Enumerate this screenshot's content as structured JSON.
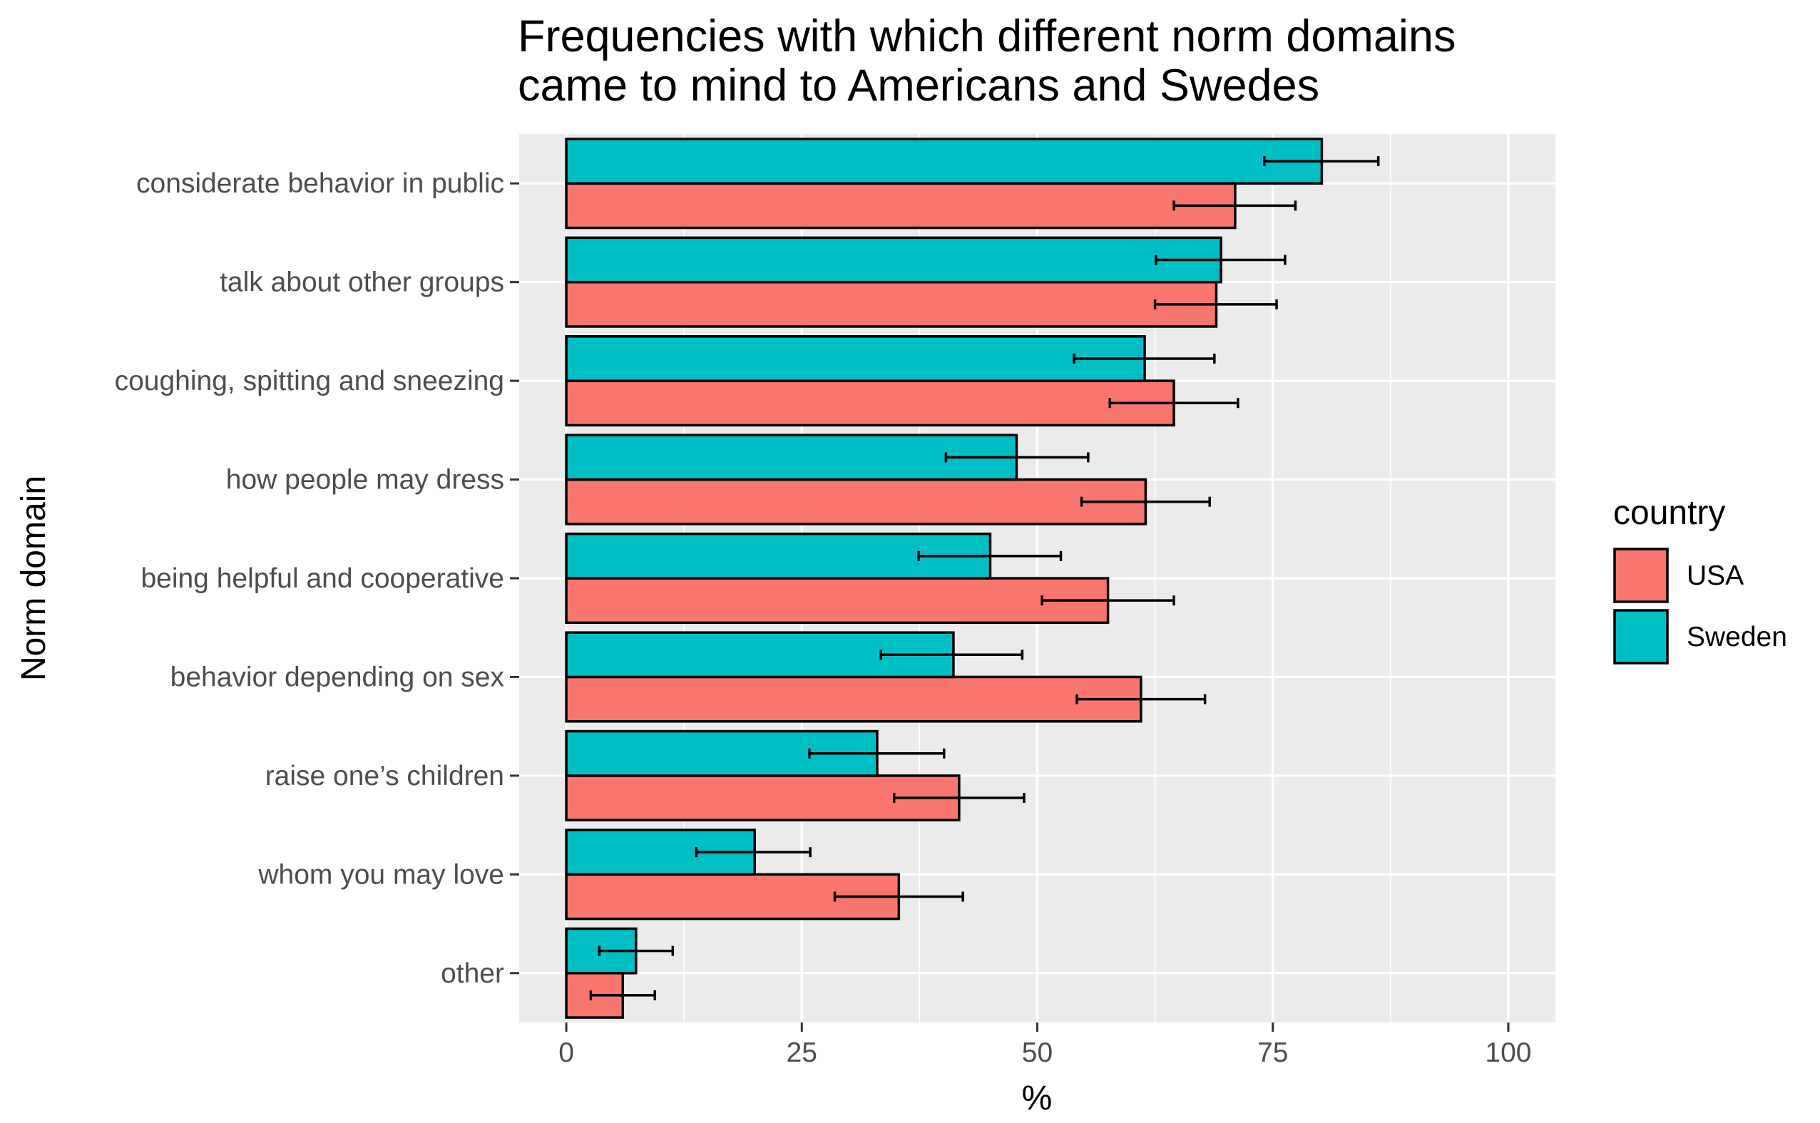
{
  "chart_data": {
    "type": "bar",
    "orientation": "horizontal",
    "title_lines": [
      "Frequencies with which different norm domains",
      "came to mind to Americans and Swedes"
    ],
    "xlabel": "%",
    "ylabel": "Norm domain",
    "xlim": [
      -5,
      105
    ],
    "x_ticks": [
      0,
      25,
      50,
      75,
      100
    ],
    "x_tick_labels": [
      "0",
      "25",
      "50",
      "75",
      "100"
    ],
    "grid": true,
    "legend_position": "right",
    "legend": {
      "title": "country",
      "entries": [
        "USA",
        "Sweden"
      ]
    },
    "colors": {
      "USA": "#f8766d",
      "Sweden": "#00bfc4",
      "panel": "#ebebeb",
      "grid": "#ffffff",
      "outline": "#000000"
    },
    "categories": [
      "considerate behavior in public",
      "talk about other groups",
      "coughing, spitting and sneezing",
      "how people may dress",
      "being helpful and cooperative",
      "behavior depending on sex",
      "raise one’s children",
      "whom you may love",
      "other"
    ],
    "series": [
      {
        "name": "USA",
        "values": [
          71,
          69,
          64.5,
          61.5,
          57.5,
          61,
          41.7,
          35.3,
          6
        ],
        "error_low": [
          64.5,
          62.5,
          57.7,
          54.7,
          50.5,
          54.2,
          34.8,
          28.5,
          2.6
        ],
        "error_high": [
          77.4,
          75.4,
          71.3,
          68.3,
          64.5,
          67.8,
          48.6,
          42.1,
          9.4
        ]
      },
      {
        "name": "Sweden",
        "values": [
          80.2,
          69.5,
          61.4,
          47.8,
          45,
          41.1,
          33,
          20,
          7.4
        ],
        "error_low": [
          74.1,
          62.6,
          53.9,
          40.3,
          37.4,
          33.4,
          25.8,
          13.8,
          3.5
        ],
        "error_high": [
          86.2,
          76.3,
          68.8,
          55.4,
          52.5,
          48.4,
          40.1,
          25.9,
          11.3
        ]
      }
    ]
  }
}
